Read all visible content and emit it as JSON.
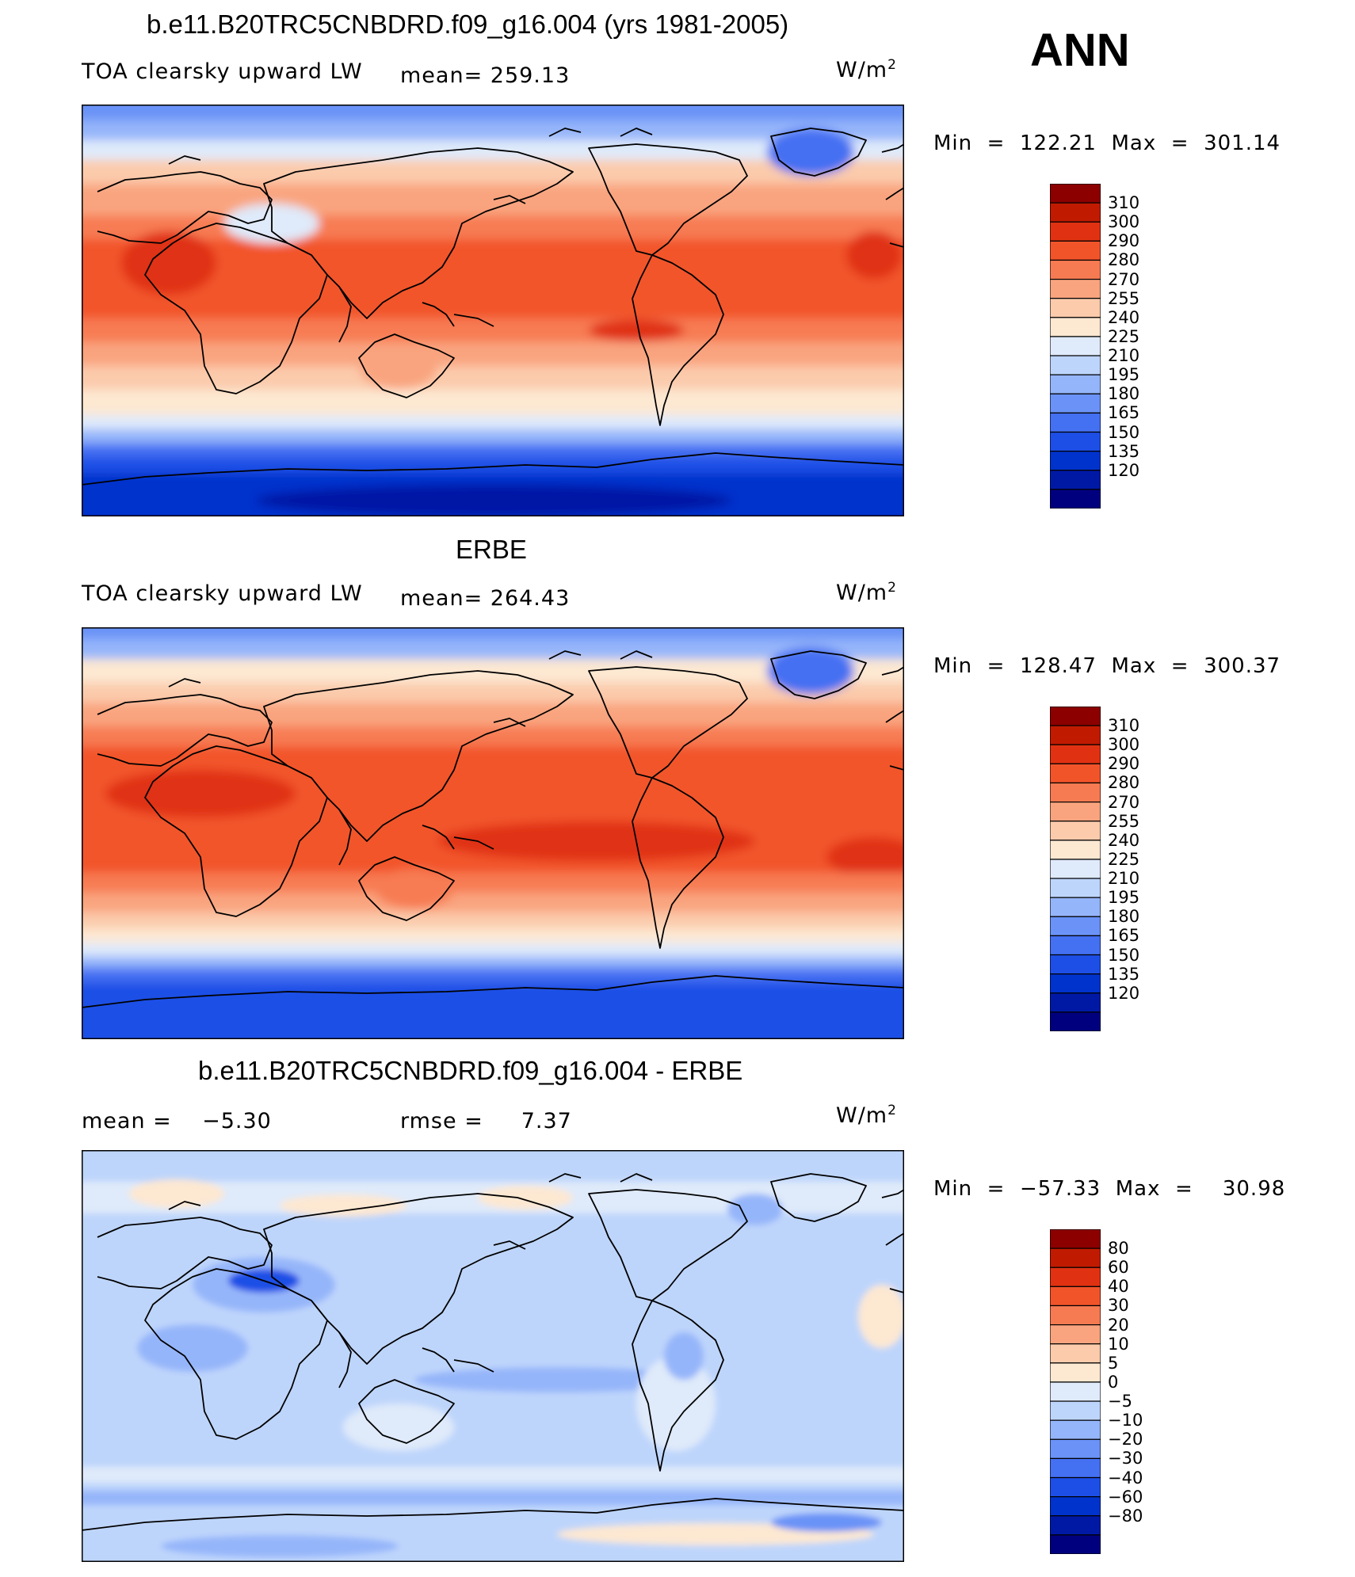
{
  "season": "ANN",
  "panels": [
    {
      "id": "model",
      "title": "b.e11.B20TRC5CNBDRD.f09_g16.004 (yrs 1981-2005)",
      "left_label": "TOA clearsky upward LW",
      "stat_label": "mean= 259.13",
      "units_base": "W/m",
      "units_sup": "2",
      "minmax": "Min  =  122.21  Max  =  301.14"
    },
    {
      "id": "obs",
      "title": "ERBE",
      "left_label": "TOA clearsky upward LW",
      "stat_label": "mean= 264.43",
      "units_base": "W/m",
      "units_sup": "2",
      "minmax": "Min  =  128.47  Max  =  300.37"
    },
    {
      "id": "diff",
      "title": "b.e11.B20TRC5CNBDRD.f09_g16.004 - ERBE",
      "left_label": "mean =    −5.30",
      "stat_label": "rmse =     7.37",
      "units_base": "W/m",
      "units_sup": "2",
      "minmax": "Min  =  −57.33  Max  =    30.98"
    }
  ],
  "chart_data": [
    {
      "type": "heatmap",
      "title": "b.e11.B20TRC5CNBDRD.f09_g16.004 (yrs 1981-2005)",
      "variable": "TOA clearsky upward LW",
      "units": "W/m2",
      "mean": 259.13,
      "min": 122.21,
      "max": 301.14,
      "colorbar_levels": [
        120,
        135,
        150,
        165,
        180,
        195,
        210,
        225,
        240,
        255,
        270,
        280,
        290,
        300,
        310
      ],
      "colorbar_labels": [
        "310",
        "300",
        "290",
        "280",
        "270",
        "255",
        "240",
        "225",
        "210",
        "195",
        "180",
        "165",
        "150",
        "135",
        "120"
      ],
      "colors": [
        "#00007f",
        "#0019a5",
        "#0033cc",
        "#1d4fe6",
        "#4470f2",
        "#6b93f7",
        "#95b5fa",
        "#bed5fb",
        "#dfeafa",
        "#fde8d2",
        "#fbcbac",
        "#f9a47f",
        "#f77b52",
        "#f2542a",
        "#e03212",
        "#c01b00",
        "#8c0000"
      ]
    },
    {
      "type": "heatmap",
      "title": "ERBE",
      "variable": "TOA clearsky upward LW",
      "units": "W/m2",
      "mean": 264.43,
      "min": 128.47,
      "max": 300.37,
      "colorbar_levels": [
        120,
        135,
        150,
        165,
        180,
        195,
        210,
        225,
        240,
        255,
        270,
        280,
        290,
        300,
        310
      ],
      "colorbar_labels": [
        "310",
        "300",
        "290",
        "280",
        "270",
        "255",
        "240",
        "225",
        "210",
        "195",
        "180",
        "165",
        "150",
        "135",
        "120"
      ],
      "colors": [
        "#00007f",
        "#0019a5",
        "#0033cc",
        "#1d4fe6",
        "#4470f2",
        "#6b93f7",
        "#95b5fa",
        "#bed5fb",
        "#dfeafa",
        "#fde8d2",
        "#fbcbac",
        "#f9a47f",
        "#f77b52",
        "#f2542a",
        "#e03212",
        "#c01b00",
        "#8c0000"
      ]
    },
    {
      "type": "heatmap",
      "title": "b.e11.B20TRC5CNBDRD.f09_g16.004 - ERBE",
      "units": "W/m2",
      "mean": -5.3,
      "rmse": 7.37,
      "min": -57.33,
      "max": 30.98,
      "colorbar_levels": [
        -80,
        -60,
        -40,
        -30,
        -20,
        -10,
        -5,
        0,
        5,
        10,
        20,
        30,
        40,
        60,
        80
      ],
      "colorbar_labels": [
        "80",
        "60",
        "40",
        "30",
        "20",
        "10",
        "5",
        "0",
        "−5",
        "−10",
        "−20",
        "−30",
        "−40",
        "−60",
        "−80"
      ],
      "colors": [
        "#00007f",
        "#0019a5",
        "#0033cc",
        "#1d4fe6",
        "#4470f2",
        "#6b93f7",
        "#95b5fa",
        "#bed5fb",
        "#dfeafa",
        "#fde8d2",
        "#fbcbac",
        "#f9a47f",
        "#f77b52",
        "#f2542a",
        "#e03212",
        "#c01b00",
        "#8c0000"
      ]
    }
  ]
}
